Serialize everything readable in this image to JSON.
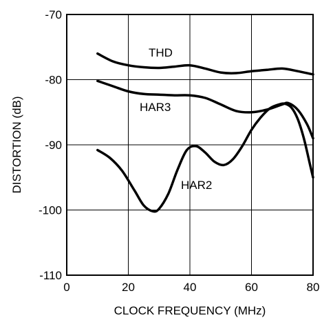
{
  "chart_data": {
    "type": "line",
    "xlabel": "CLOCK FREQUENCY (MHz)",
    "ylabel": "DISTORTION (dB)",
    "xlim": [
      0,
      80
    ],
    "ylim": [
      -110,
      -70
    ],
    "x_ticks": [
      "0",
      "20",
      "40",
      "60",
      "80"
    ],
    "y_ticks": [
      "-70",
      "-80",
      "-90",
      "-100",
      "-110"
    ],
    "x_tick_values": [
      0,
      20,
      40,
      60,
      80
    ],
    "y_tick_values": [
      -70,
      -80,
      -90,
      -100,
      -110
    ],
    "grid": true,
    "legend": "none",
    "series": [
      {
        "name": "THD",
        "x": [
          10,
          15,
          20,
          25,
          30,
          35,
          40,
          45,
          50,
          55,
          60,
          65,
          70,
          75,
          80
        ],
        "y": [
          -76.0,
          -77.2,
          -77.8,
          -78.1,
          -78.2,
          -78.0,
          -77.8,
          -78.3,
          -78.9,
          -79.0,
          -78.7,
          -78.5,
          -78.3,
          -78.7,
          -79.2
        ]
      },
      {
        "name": "HAR3",
        "x": [
          10,
          15,
          20,
          25,
          30,
          35,
          40,
          45,
          50,
          55,
          60,
          65,
          70,
          72,
          75,
          78,
          80
        ],
        "y": [
          -80.2,
          -81.0,
          -81.8,
          -82.2,
          -82.3,
          -82.4,
          -82.4,
          -82.8,
          -83.8,
          -84.8,
          -85.0,
          -84.6,
          -83.8,
          -83.6,
          -84.6,
          -86.8,
          -89.0
        ]
      },
      {
        "name": "HAR2",
        "x": [
          10,
          14,
          18,
          22,
          25,
          28,
          30,
          33,
          36,
          39,
          42,
          45,
          48,
          51,
          54,
          57,
          60,
          63,
          66,
          69,
          71,
          73,
          75,
          77,
          79,
          80
        ],
        "y": [
          -90.8,
          -92.0,
          -94.0,
          -97.0,
          -99.3,
          -100.2,
          -99.8,
          -97.5,
          -93.8,
          -90.8,
          -90.2,
          -91.2,
          -92.6,
          -93.1,
          -92.2,
          -90.2,
          -87.7,
          -85.8,
          -84.4,
          -83.8,
          -83.7,
          -84.3,
          -86.0,
          -89.0,
          -93.0,
          -95.0
        ]
      }
    ]
  }
}
